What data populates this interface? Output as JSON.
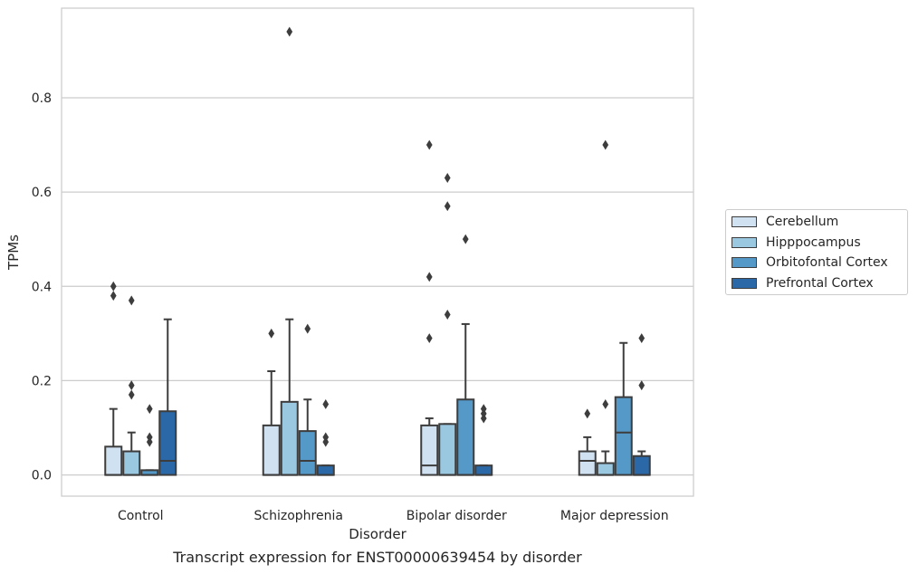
{
  "caption": "Transcript expression for ENST00000639454 by disorder",
  "chart_data": {
    "type": "box",
    "title": "",
    "xlabel": "Disorder",
    "ylabel": "TPMs",
    "ylim": [
      -0.045,
      0.99
    ],
    "yticks": [
      0.0,
      0.2,
      0.4,
      0.6,
      0.8
    ],
    "ytick_labels": [
      "0.0",
      "0.2",
      "0.4",
      "0.6",
      "0.8"
    ],
    "grid": "horizontal",
    "legend_position": "right",
    "categories": [
      "Control",
      "Schizophrenia",
      "Bipolar disorder",
      "Major depression"
    ],
    "series": [
      {
        "name": "Cerebellum",
        "color": "#d0e1f2",
        "boxes": [
          {
            "whislo": 0.0,
            "q1": 0.0,
            "med": 0.0,
            "q3": 0.06,
            "whishi": 0.14,
            "fliers": [
              0.38,
              0.4
            ]
          },
          {
            "whislo": 0.0,
            "q1": 0.0,
            "med": 0.0,
            "q3": 0.105,
            "whishi": 0.22,
            "fliers": [
              0.3
            ]
          },
          {
            "whislo": 0.0,
            "q1": 0.0,
            "med": 0.02,
            "q3": 0.105,
            "whishi": 0.12,
            "fliers": [
              0.29,
              0.42,
              0.7
            ]
          },
          {
            "whislo": 0.0,
            "q1": 0.0,
            "med": 0.03,
            "q3": 0.05,
            "whishi": 0.08,
            "fliers": [
              0.13
            ]
          }
        ]
      },
      {
        "name": "Hipppocampus",
        "color": "#9ac8e0",
        "boxes": [
          {
            "whislo": 0.0,
            "q1": 0.0,
            "med": 0.0,
            "q3": 0.05,
            "whishi": 0.09,
            "fliers": [
              0.17,
              0.19,
              0.37
            ]
          },
          {
            "whislo": 0.0,
            "q1": 0.0,
            "med": 0.0,
            "q3": 0.155,
            "whishi": 0.33,
            "fliers": [
              0.94
            ]
          },
          {
            "whislo": 0.0,
            "q1": 0.0,
            "med": 0.0,
            "q3": 0.108,
            "whishi": 0.108,
            "fliers": [
              0.34,
              0.57,
              0.63
            ]
          },
          {
            "whislo": 0.0,
            "q1": 0.0,
            "med": 0.0,
            "q3": 0.025,
            "whishi": 0.05,
            "fliers": [
              0.15,
              0.7
            ]
          }
        ]
      },
      {
        "name": "Orbitofontal Cortex",
        "color": "#5499c7",
        "boxes": [
          {
            "whislo": 0.0,
            "q1": 0.0,
            "med": 0.0,
            "q3": 0.01,
            "whishi": 0.01,
            "fliers": [
              0.07,
              0.08,
              0.14
            ]
          },
          {
            "whislo": 0.0,
            "q1": 0.0,
            "med": 0.03,
            "q3": 0.093,
            "whishi": 0.16,
            "fliers": [
              0.31
            ]
          },
          {
            "whislo": 0.0,
            "q1": 0.0,
            "med": 0.0,
            "q3": 0.16,
            "whishi": 0.32,
            "fliers": [
              0.5
            ]
          },
          {
            "whislo": 0.0,
            "q1": 0.0,
            "med": 0.09,
            "q3": 0.165,
            "whishi": 0.28,
            "fliers": []
          }
        ]
      },
      {
        "name": "Prefrontal Cortex",
        "color": "#2a68a8",
        "boxes": [
          {
            "whislo": 0.0,
            "q1": 0.0,
            "med": 0.03,
            "q3": 0.135,
            "whishi": 0.33,
            "fliers": []
          },
          {
            "whislo": 0.0,
            "q1": 0.0,
            "med": 0.0,
            "q3": 0.02,
            "whishi": 0.02,
            "fliers": [
              0.07,
              0.08,
              0.15
            ]
          },
          {
            "whislo": 0.0,
            "q1": 0.0,
            "med": 0.0,
            "q3": 0.02,
            "whishi": 0.02,
            "fliers": [
              0.12,
              0.13,
              0.14
            ]
          },
          {
            "whislo": 0.0,
            "q1": 0.0,
            "med": 0.0,
            "q3": 0.04,
            "whishi": 0.05,
            "fliers": [
              0.19,
              0.29
            ]
          }
        ]
      }
    ]
  }
}
